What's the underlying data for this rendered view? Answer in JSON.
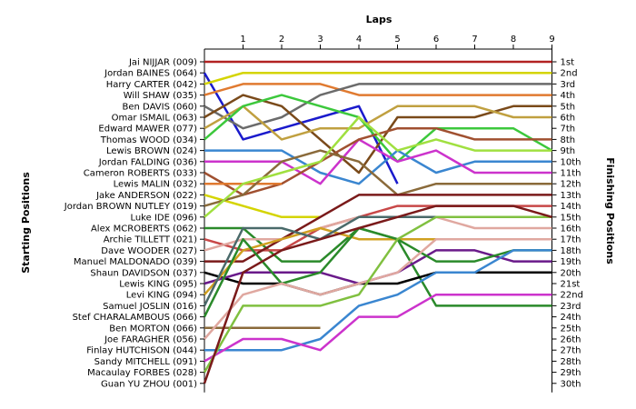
{
  "chart_data": {
    "type": "line",
    "title": "Laps",
    "ylabel_left": "Starting Positions",
    "ylabel_right": "Finishing Positions",
    "laps": [
      "1",
      "2",
      "3",
      "4",
      "5",
      "6",
      "7",
      "8",
      "9"
    ],
    "finish_labels": [
      "1st",
      "2nd",
      "3rd",
      "4th",
      "5th",
      "6th",
      "7th",
      "8th",
      "9th",
      "10th",
      "11th",
      "12th",
      "13th",
      "14th",
      "15th",
      "16th",
      "17th",
      "18th",
      "19th",
      "20th",
      "21st",
      "22nd",
      "23rd",
      "24th",
      "25th",
      "26th",
      "27th",
      "28th",
      "29th",
      "30th"
    ],
    "drivers": [
      {
        "label": "Jai NIJJAR (009)",
        "color": "#b22222",
        "positions": [
          1,
          1,
          1,
          1,
          1,
          1,
          1,
          1,
          1,
          1
        ]
      },
      {
        "label": "Jordan BAINES (064)",
        "color": "#1a1acc",
        "positions": [
          2,
          8,
          7,
          6,
          5,
          12
        ]
      },
      {
        "label": "Harry CARTER (042)",
        "color": "#d4d400",
        "positions": [
          3,
          2,
          2,
          2,
          2,
          2,
          2,
          2,
          2,
          2
        ]
      },
      {
        "label": "Will SHAW (035)",
        "color": "#e07a30",
        "positions": [
          4,
          3,
          3,
          3,
          4,
          4,
          4,
          4,
          4,
          4
        ]
      },
      {
        "label": "Ben DAVIS (060)",
        "color": "#6b6b6b",
        "positions": [
          5,
          7,
          6,
          4,
          3,
          3,
          3,
          3,
          3,
          3
        ]
      },
      {
        "label": "Omar ISMAIL (063)",
        "color": "#7a4a1a",
        "positions": [
          6,
          4,
          5,
          8,
          11,
          6,
          6,
          6,
          5,
          5
        ]
      },
      {
        "label": "Edward MAWER (077)",
        "color": "#c0a040",
        "positions": [
          7,
          5,
          8,
          7,
          7,
          5,
          5,
          5,
          6,
          6
        ]
      },
      {
        "label": "Thomas WOOD (034)",
        "color": "#3cc83c",
        "positions": [
          8,
          5,
          4,
          5,
          6,
          10,
          7,
          7,
          7,
          9
        ]
      },
      {
        "label": "Lewis BROWN (024)",
        "color": "#3a86d0",
        "positions": [
          9,
          9,
          9,
          11,
          12,
          9,
          11,
          10,
          10,
          10
        ]
      },
      {
        "label": "Jordan FALDING (036)",
        "color": "#cc33cc",
        "positions": [
          10,
          10,
          10,
          12,
          8,
          10,
          9,
          11,
          11,
          11
        ]
      },
      {
        "label": "Cameron ROBERTS (033)",
        "color": "#a05030",
        "positions": [
          11,
          13,
          12,
          10,
          8,
          7,
          7,
          8,
          8,
          8
        ]
      },
      {
        "label": "Lewis MALIN (032)",
        "color": "#e07a30",
        "positions": [
          12,
          12,
          12
        ]
      },
      {
        "label": "Jake ANDERSON (022)",
        "color": "#d4d400",
        "positions": [
          13,
          14,
          15,
          15
        ]
      },
      {
        "label": "Jordan BROWN NUTLEY (019)",
        "color": "#8a6a3a",
        "positions": [
          14,
          13,
          10,
          9,
          10,
          13,
          12,
          12,
          12,
          12
        ]
      },
      {
        "label": "Luke IDE (096)",
        "color": "#a0e040",
        "positions": [
          15,
          12,
          11,
          10,
          6,
          9,
          8,
          9,
          9,
          9
        ]
      },
      {
        "label": "Alex MCROBERTS (062)",
        "color": "#2a8a2a",
        "positions": [
          16,
          16,
          19,
          19,
          16,
          17,
          23,
          23,
          23,
          23
        ]
      },
      {
        "label": "Archie TILLETT (021)",
        "color": "#c84848",
        "positions": [
          17,
          18,
          18,
          16,
          15,
          14,
          14,
          14,
          14,
          14
        ]
      },
      {
        "label": "Dave WOODER (027)",
        "color": "#e0a8a0",
        "positions": [
          18,
          17,
          17,
          16,
          15,
          15,
          15,
          16,
          16,
          16
        ]
      },
      {
        "label": "Manuel MALDONADO (039)",
        "color": "#7a1a1a",
        "positions": [
          19,
          19,
          17,
          15,
          13,
          13,
          13,
          13,
          13,
          13
        ]
      },
      {
        "label": "Shaun DAVIDSON (037)",
        "color": "#000000",
        "positions": [
          20,
          21,
          21,
          22,
          21,
          21,
          20,
          20,
          20,
          20
        ]
      },
      {
        "label": "Lewis KING (095)",
        "color": "#6a1a8a",
        "positions": [
          21,
          20,
          20,
          20,
          21,
          20,
          18,
          18,
          19,
          19
        ]
      },
      {
        "label": "Levi KING (094)",
        "color": "#d0a020",
        "positions": [
          22,
          18,
          17,
          16,
          17,
          17,
          17,
          17,
          17,
          17
        ]
      },
      {
        "label": "Samuel JOSLIN (016)",
        "color": "#4a6a6a",
        "positions": [
          23,
          16,
          16,
          17,
          15,
          15,
          15,
          15,
          15,
          15
        ]
      },
      {
        "label": "Stef CHARALAMBOUS (066)",
        "color": "#2a8a2a",
        "positions": [
          24,
          17,
          21,
          20,
          16,
          17,
          19,
          19,
          18,
          18
        ]
      },
      {
        "label": "Ben MORTON (066)",
        "color": "#8a6a3a",
        "positions": [
          25,
          25,
          25,
          25
        ]
      },
      {
        "label": "Joe FARAGHER (056)",
        "color": "#e0a8a0",
        "positions": [
          26,
          22,
          21,
          22,
          21,
          20,
          17,
          17,
          17,
          17
        ]
      },
      {
        "label": "Finlay HUTCHISON (044)",
        "color": "#3a86d0",
        "positions": [
          27,
          27,
          27,
          26,
          23,
          22,
          20,
          20,
          18,
          18
        ]
      },
      {
        "label": "Sandy MITCHELL (091)",
        "color": "#cc33cc",
        "positions": [
          28,
          26,
          26,
          27,
          24,
          24,
          22,
          22,
          22,
          22
        ]
      },
      {
        "label": "Macaulay FORBES (028)",
        "color": "#80c040",
        "positions": [
          29,
          23,
          23,
          23,
          22,
          17,
          15,
          15,
          15,
          15
        ]
      },
      {
        "label": "Guan YU ZHOU (001)",
        "color": "#7a1a1a",
        "positions": [
          30,
          20,
          18,
          17,
          16,
          15,
          14,
          14,
          14,
          15
        ]
      }
    ]
  }
}
